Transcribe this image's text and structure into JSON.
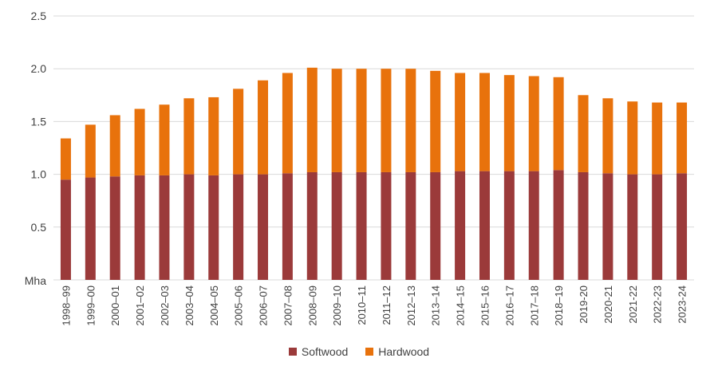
{
  "chart_data": {
    "type": "bar",
    "stacked": true,
    "ylabel": "Mha",
    "ylim": [
      0,
      2.5
    ],
    "yticks": [
      0.5,
      1.0,
      1.5,
      2.0,
      2.5
    ],
    "ytick_labels": [
      "0.5",
      "1.0",
      "1.5",
      "2.0",
      "2.5"
    ],
    "grid": true,
    "legend_position": "bottom",
    "categories": [
      "1998–99",
      "1999–00",
      "2000–01",
      "2001–02",
      "2002–03",
      "2003–04",
      "2004–05",
      "2005–06",
      "2006–07",
      "2007–08",
      "2008–09",
      "2009–10",
      "2010–11",
      "2011–12",
      "2012–13",
      "2013–14",
      "2014–15",
      "2015–16",
      "2016–17",
      "2017–18",
      "2018–19",
      "2019-20",
      "2020-21",
      "2021-22",
      "2022-23",
      "2023-24"
    ],
    "series": [
      {
        "name": "Softwood",
        "color": "#9b3a3a",
        "values": [
          0.95,
          0.97,
          0.98,
          0.99,
          0.99,
          1.0,
          0.99,
          1.0,
          1.0,
          1.01,
          1.02,
          1.02,
          1.02,
          1.02,
          1.02,
          1.02,
          1.03,
          1.03,
          1.03,
          1.03,
          1.04,
          1.02,
          1.01,
          1.0,
          1.0,
          1.01
        ]
      },
      {
        "name": "Hardwood",
        "color": "#e8720c",
        "values": [
          0.39,
          0.5,
          0.58,
          0.63,
          0.67,
          0.72,
          0.74,
          0.81,
          0.89,
          0.95,
          0.99,
          0.98,
          0.98,
          0.98,
          0.98,
          0.96,
          0.93,
          0.93,
          0.91,
          0.9,
          0.88,
          0.73,
          0.71,
          0.69,
          0.68,
          0.67
        ]
      }
    ]
  }
}
